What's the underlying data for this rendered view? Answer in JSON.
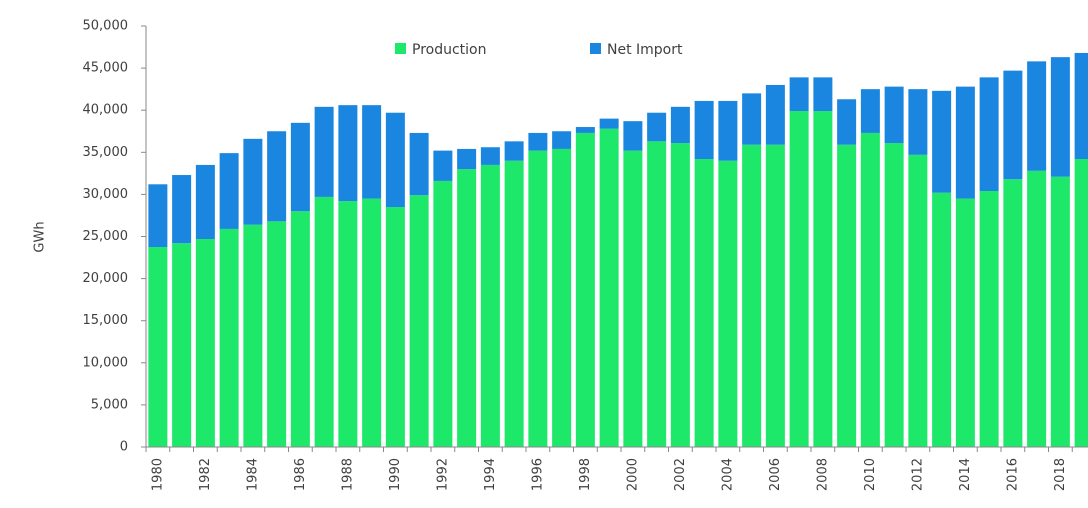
{
  "chart_data": {
    "type": "stacked_bar",
    "y_label": "GWh",
    "categories": [
      "1980",
      null,
      "1982",
      null,
      "1984",
      null,
      "1986",
      null,
      "1988",
      null,
      "1990",
      null,
      "1992",
      null,
      "1994",
      null,
      "1996",
      null,
      "1998",
      null,
      "2000",
      null,
      "2002",
      null,
      "2004",
      null,
      "2006",
      null,
      "2008",
      null,
      "2010",
      null,
      "2012",
      null,
      "2014",
      null,
      "2016",
      null,
      "2018",
      null
    ],
    "series": [
      {
        "name": "Production",
        "color": "#1ee86a",
        "values": [
          23750,
          24200,
          24700,
          25900,
          26400,
          26800,
          28000,
          29700,
          29200,
          29500,
          28500,
          29900,
          31600,
          33000,
          33500,
          34000,
          35200,
          35400,
          37300,
          37800,
          35200,
          36300,
          36100,
          34200,
          34000,
          35900,
          35900,
          39900,
          39900,
          35900,
          37300,
          36100,
          34700,
          30200,
          29500,
          30400,
          31800,
          32800,
          32100,
          34200
        ]
      },
      {
        "name": "Net Import",
        "color": "#1a86e0",
        "values": [
          7450,
          8100,
          8800,
          9000,
          10200,
          10700,
          10500,
          10700,
          11400,
          11100,
          11200,
          7400,
          3600,
          2400,
          2100,
          2300,
          2100,
          2100,
          700,
          1200,
          3500,
          3400,
          4300,
          6900,
          7100,
          6100,
          7100,
          4000,
          4000,
          5400,
          5200,
          6700,
          7800,
          12100,
          13300,
          13500,
          12900,
          13000,
          14200,
          12600
        ]
      }
    ],
    "ylim": [
      0,
      50000
    ],
    "yticks": [
      0,
      {
        "value": 5000,
        "label": "5,000"
      },
      {
        "value": 10000,
        "label": "10,000"
      },
      {
        "value": 15000,
        "label": "15,000"
      },
      {
        "value": 20000,
        "label": "20,000"
      },
      {
        "value": 25000,
        "label": "25,000"
      },
      {
        "value": 30000,
        "label": "30,000"
      },
      {
        "value": 35000,
        "label": "35,000"
      },
      {
        "value": 40000,
        "label": "40,000"
      },
      {
        "value": 45000,
        "label": "45,000"
      },
      {
        "value": 50000,
        "label": "50,000"
      }
    ],
    "grid": false,
    "legend": "top"
  }
}
